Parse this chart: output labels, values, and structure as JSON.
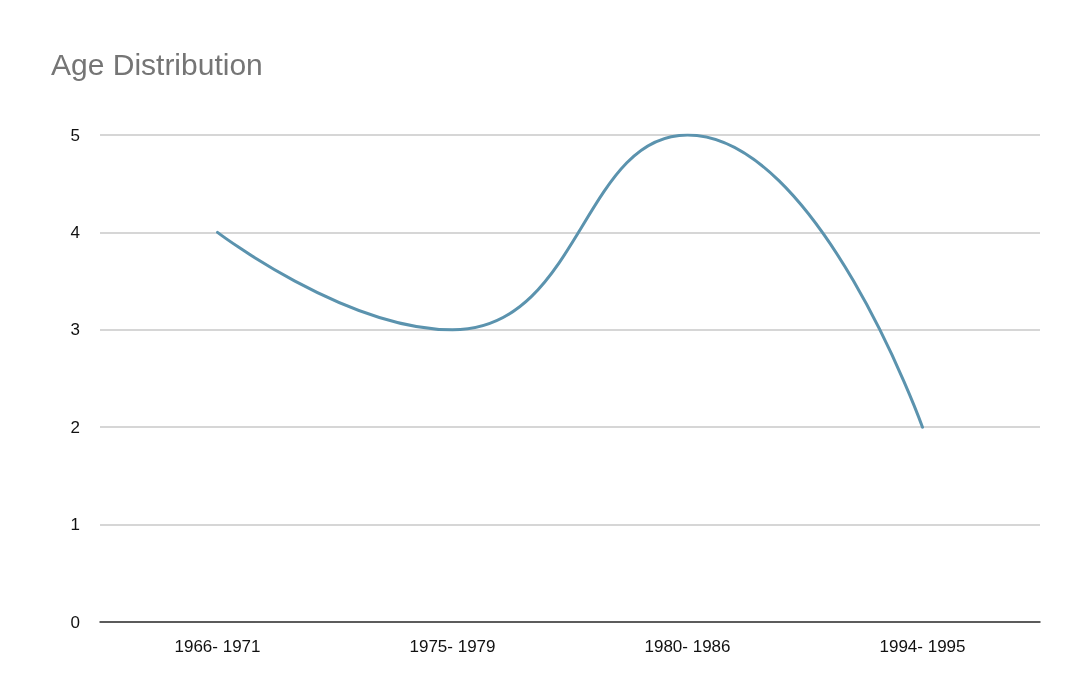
{
  "chart_data": {
    "type": "line",
    "title": "Age Distribution",
    "categories": [
      "1966- 1971",
      "1975- 1979",
      "1980- 1986",
      "1994- 1995"
    ],
    "series": [
      {
        "color": "#5b93ae",
        "values": [
          4,
          3,
          5,
          2
        ]
      }
    ],
    "ylim": [
      0,
      5
    ],
    "yticks": [
      0,
      1,
      2,
      3,
      4,
      5
    ],
    "grid": "y",
    "marker": "none",
    "line_style": "solid"
  }
}
